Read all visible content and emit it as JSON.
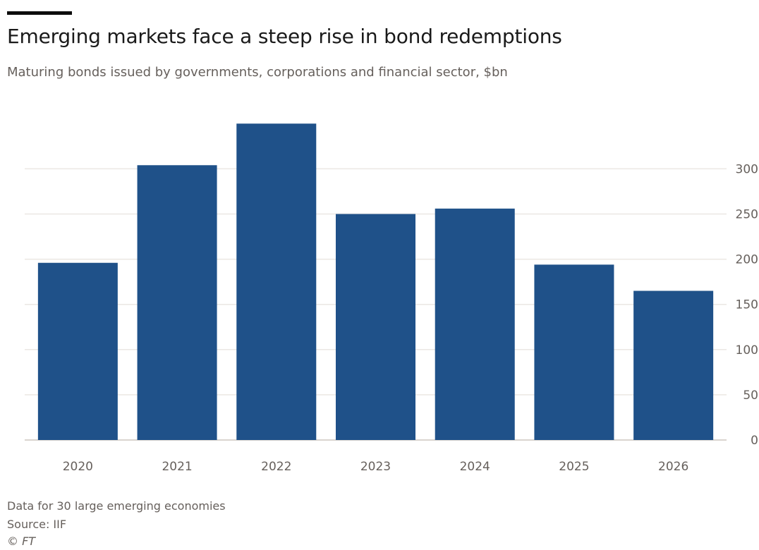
{
  "chart_data": {
    "type": "bar",
    "title": "Emerging markets face a steep rise in bond redemptions",
    "subtitle": "Maturing bonds issued by governments, corporations and financial sector, $bn",
    "categories": [
      "2020",
      "2021",
      "2022",
      "2023",
      "2024",
      "2025",
      "2026"
    ],
    "values": [
      196,
      304,
      350,
      250,
      256,
      194,
      165
    ],
    "ylim": [
      0,
      350
    ],
    "yticks": [
      0,
      50,
      100,
      150,
      200,
      250,
      300
    ],
    "y_axis_position": "right",
    "grid": true,
    "bar_color": "#1f5189",
    "gridline_color": "#ebe7e3",
    "xlabel": "",
    "ylabel": ""
  },
  "notes": {
    "data_note": "Data for 30 large emerging economies",
    "source": "Source: IIF",
    "credit": "© FT"
  }
}
